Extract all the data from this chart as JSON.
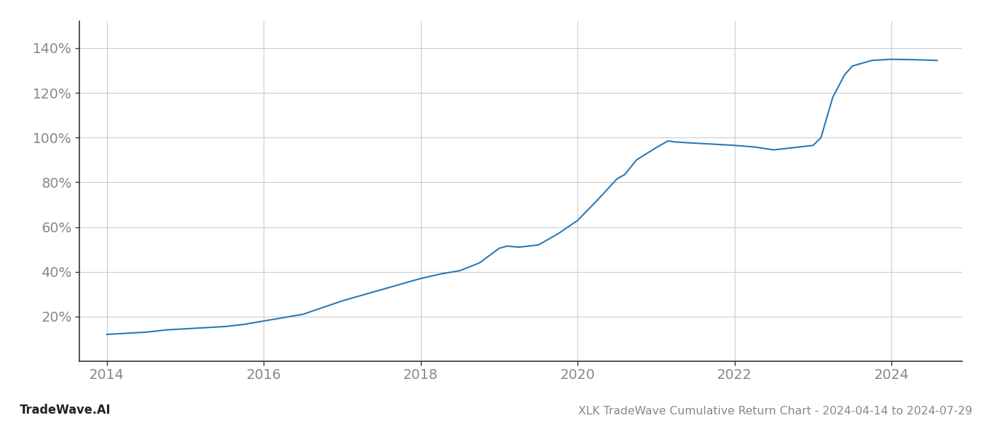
{
  "title": "XLK TradeWave Cumulative Return Chart - 2024-04-14 to 2024-07-29",
  "footer_left": "TradeWave.AI",
  "line_color": "#2878b5",
  "line_width": 1.5,
  "background_color": "#ffffff",
  "grid_color": "#cccccc",
  "x_values": [
    2014.0,
    2014.25,
    2014.5,
    2014.75,
    2015.0,
    2015.25,
    2015.5,
    2015.75,
    2016.0,
    2016.25,
    2016.5,
    2016.75,
    2017.0,
    2017.25,
    2017.5,
    2017.75,
    2018.0,
    2018.25,
    2018.5,
    2018.75,
    2019.0,
    2019.1,
    2019.25,
    2019.5,
    2019.75,
    2020.0,
    2020.25,
    2020.5,
    2020.6,
    2020.75,
    2021.0,
    2021.15,
    2021.25,
    2021.5,
    2021.75,
    2022.0,
    2022.25,
    2022.5,
    2022.75,
    2023.0,
    2023.1,
    2023.25,
    2023.4,
    2023.5,
    2023.75,
    2024.0,
    2024.3,
    2024.58
  ],
  "y_values": [
    12.0,
    12.5,
    13.0,
    14.0,
    14.5,
    15.0,
    15.5,
    16.5,
    18.0,
    19.5,
    21.0,
    24.0,
    27.0,
    29.5,
    32.0,
    34.5,
    37.0,
    39.0,
    40.5,
    44.0,
    50.5,
    51.5,
    51.0,
    52.0,
    57.0,
    63.0,
    72.0,
    81.5,
    83.5,
    90.0,
    95.5,
    98.5,
    98.0,
    97.5,
    97.0,
    96.5,
    95.8,
    94.5,
    95.5,
    96.5,
    100.0,
    118.0,
    128.0,
    132.0,
    134.5,
    135.0,
    134.8,
    134.5
  ],
  "xlim": [
    2013.65,
    2024.9
  ],
  "ylim": [
    0,
    152
  ],
  "yticks": [
    20,
    40,
    60,
    80,
    100,
    120,
    140
  ],
  "xticks": [
    2014,
    2016,
    2018,
    2020,
    2022,
    2024
  ],
  "tick_fontsize": 14,
  "footer_fontsize": 12,
  "title_fontsize": 11.5
}
